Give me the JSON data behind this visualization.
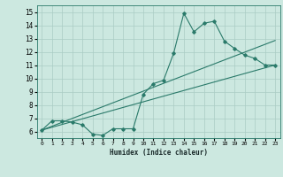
{
  "xlabel": "Humidex (Indice chaleur)",
  "bg_color": "#cce8e0",
  "line_color": "#2a7a6a",
  "grid_color": "#aaccc4",
  "xlim": [
    -0.5,
    23.5
  ],
  "ylim": [
    5.5,
    15.5
  ],
  "xticks": [
    0,
    1,
    2,
    3,
    4,
    5,
    6,
    7,
    8,
    9,
    10,
    11,
    12,
    13,
    14,
    15,
    16,
    17,
    18,
    19,
    20,
    21,
    22,
    23
  ],
  "yticks": [
    6,
    7,
    8,
    9,
    10,
    11,
    12,
    13,
    14,
    15
  ],
  "line1_x": [
    0,
    1,
    2,
    3,
    4,
    5,
    6,
    7,
    8,
    9,
    10,
    11,
    12,
    13,
    14,
    15,
    16,
    17,
    18,
    19,
    20,
    21,
    22,
    23
  ],
  "line1_y": [
    6.1,
    6.8,
    6.8,
    6.7,
    6.5,
    5.8,
    5.7,
    6.2,
    6.2,
    6.2,
    8.8,
    9.6,
    9.85,
    11.9,
    14.9,
    13.5,
    14.15,
    14.3,
    12.8,
    12.25,
    11.75,
    11.5,
    11.0,
    11.0
  ],
  "line2_x": [
    0,
    23
  ],
  "line2_y": [
    6.1,
    11.0
  ],
  "line3_x": [
    0,
    23
  ],
  "line3_y": [
    6.1,
    12.85
  ],
  "figsize": [
    3.2,
    2.0
  ],
  "dpi": 100
}
